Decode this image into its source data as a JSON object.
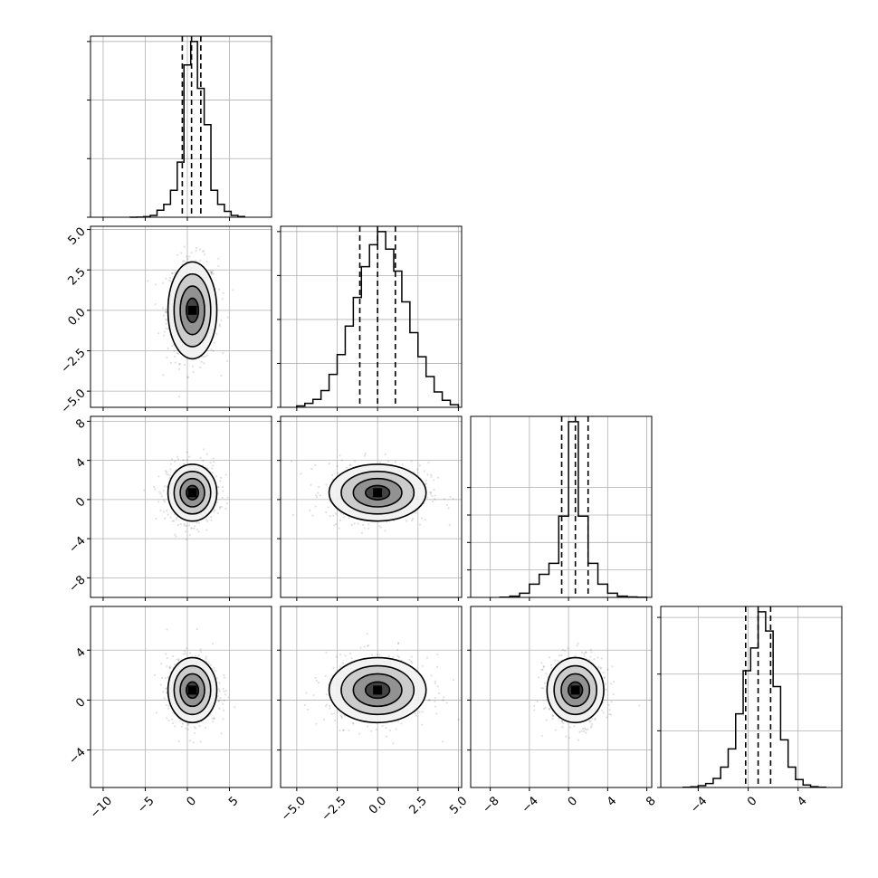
{
  "chart_data": {
    "type": "corner",
    "grid": true,
    "parameters": [
      {
        "index": 0,
        "center": 0.6,
        "sigma": 1.45,
        "quantiles": [
          -0.6,
          0.5,
          1.6
        ],
        "range": [
          -11.5,
          10.0
        ],
        "tick_values": [
          -10,
          -5,
          0,
          5
        ],
        "tick_labels": [
          "−10",
          "−5",
          "0",
          "5"
        ],
        "diag_y_ticks": [
          0,
          5000,
          10000,
          15000
        ],
        "hist": {
          "edges": [
            -6.8,
            -6.0,
            -5.2,
            -4.4,
            -3.6,
            -2.8,
            -2.0,
            -1.2,
            -0.4,
            0.4,
            1.2,
            2.0,
            2.8,
            3.6,
            4.4,
            5.2,
            6.0,
            6.8
          ],
          "counts": [
            3,
            12,
            45,
            150,
            600,
            1100,
            2300,
            4700,
            13000,
            15000,
            11000,
            7900,
            2300,
            1100,
            500,
            150,
            60
          ]
        }
      },
      {
        "index": 1,
        "center": 0.0,
        "sigma": 1.5,
        "quantiles": [
          -1.1,
          0.0,
          1.1
        ],
        "range": [
          -6.0,
          5.2
        ],
        "tick_values": [
          -5.0,
          -2.5,
          0.0,
          2.5,
          5.0
        ],
        "tick_labels": [
          "−5.0",
          "−2.5",
          "0.0",
          "2.5",
          "5.0"
        ],
        "diag_y_ticks": [
          0,
          1000,
          2000,
          3000,
          4000
        ],
        "hist": {
          "edges": [
            -5.0,
            -4.5,
            -4.0,
            -3.5,
            -3.0,
            -2.5,
            -2.0,
            -1.5,
            -1.0,
            -0.5,
            0.0,
            0.5,
            1.0,
            1.5,
            2.0,
            2.5,
            3.0,
            3.5,
            4.0,
            4.5,
            5.0
          ],
          "counts": [
            30,
            90,
            180,
            380,
            750,
            1200,
            1850,
            2500,
            3200,
            3700,
            4000,
            3600,
            3100,
            2400,
            1700,
            1150,
            700,
            350,
            160,
            60
          ]
        }
      },
      {
        "index": 2,
        "center": 0.7,
        "sigma": 1.45,
        "quantiles": [
          -0.7,
          0.7,
          2.0
        ],
        "range": [
          -10.0,
          8.5
        ],
        "tick_values": [
          -8,
          -4,
          0,
          4,
          8
        ],
        "tick_labels": [
          "−8",
          "−4",
          "0",
          "4",
          "8"
        ],
        "diag_y_ticks": [
          0,
          2500,
          5000,
          7500,
          10000
        ],
        "hist": {
          "edges": [
            -7.0,
            -6.0,
            -5.0,
            -4.0,
            -3.0,
            -2.0,
            -1.0,
            0.0,
            1.0,
            2.0,
            3.0,
            4.0,
            5.0,
            6.0,
            7.0,
            8.0
          ],
          "counts": [
            25,
            110,
            380,
            1200,
            2100,
            3100,
            7400,
            16000,
            7400,
            3100,
            1200,
            380,
            110,
            40,
            10
          ]
        }
      },
      {
        "index": 3,
        "center": 0.8,
        "sigma": 1.3,
        "quantiles": [
          -0.2,
          0.8,
          1.8
        ],
        "range": [
          -7.0,
          7.5
        ],
        "tick_values": [
          -4,
          0,
          4
        ],
        "tick_labels": [
          "−4",
          "0",
          "4"
        ],
        "diag_y_ticks": [
          0,
          5000,
          10000,
          15000
        ],
        "hist": {
          "edges": [
            -5.2,
            -4.6,
            -4.0,
            -3.4,
            -2.8,
            -2.2,
            -1.6,
            -1.0,
            -0.4,
            0.2,
            0.8,
            1.4,
            2.0,
            2.6,
            3.2,
            3.8,
            4.4,
            5.0,
            5.6,
            6.2
          ],
          "counts": [
            20,
            60,
            160,
            350,
            800,
            1800,
            3400,
            6500,
            10300,
            12300,
            15500,
            13800,
            8900,
            4200,
            1800,
            700,
            220,
            70,
            20
          ]
        }
      }
    ]
  }
}
